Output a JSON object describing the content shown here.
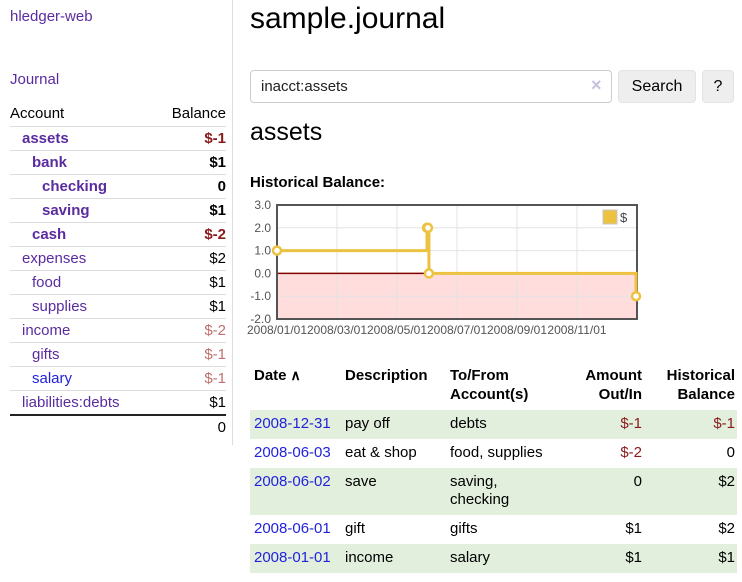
{
  "app": {
    "title": "hledger-web"
  },
  "colors": {
    "link_purple": "#5a2ca0",
    "link_blue": "#2222dd",
    "negative_dark_red": "#8b1a1a",
    "negative_light_red": "#bf7171",
    "row_green": "#e2efdc",
    "series_gold": "#edc240"
  },
  "sidebar": {
    "nav_journal": "Journal",
    "table": {
      "headers": {
        "account": "Account",
        "balance": "Balance"
      },
      "rows": [
        {
          "account": "assets",
          "indent": 1,
          "bold": true,
          "blue": false,
          "balance": "$-1",
          "style": "neg"
        },
        {
          "account": "bank",
          "indent": 2,
          "bold": true,
          "blue": false,
          "balance": "$1",
          "style": ""
        },
        {
          "account": "checking",
          "indent": 3,
          "bold": true,
          "blue": false,
          "balance": "0",
          "style": ""
        },
        {
          "account": "saving",
          "indent": 3,
          "bold": true,
          "blue": false,
          "balance": "$1",
          "style": ""
        },
        {
          "account": "cash",
          "indent": 2,
          "bold": true,
          "blue": false,
          "balance": "$-2",
          "style": "neg"
        },
        {
          "account": "expenses",
          "indent": 1,
          "bold": false,
          "blue": false,
          "balance": "$2",
          "style": ""
        },
        {
          "account": "food",
          "indent": 2,
          "bold": false,
          "blue": false,
          "balance": "$1",
          "style": ""
        },
        {
          "account": "supplies",
          "indent": 2,
          "bold": false,
          "blue": false,
          "balance": "$1",
          "style": ""
        },
        {
          "account": "income",
          "indent": 1,
          "bold": false,
          "blue": false,
          "balance": "$-2",
          "style": "negl"
        },
        {
          "account": "gifts",
          "indent": 2,
          "bold": false,
          "blue": false,
          "balance": "$-1",
          "style": "negl"
        },
        {
          "account": "salary",
          "indent": 2,
          "bold": false,
          "blue": true,
          "balance": "$-1",
          "style": "negl"
        },
        {
          "account": "liabilities:debts",
          "indent": 1,
          "bold": false,
          "blue": false,
          "balance": "$1",
          "style": ""
        }
      ],
      "total": "0"
    }
  },
  "main": {
    "title": "sample.journal",
    "search": {
      "value": "inacct:assets",
      "clear_icon": "×",
      "button": "Search",
      "help_button": "?"
    },
    "section_title": "assets",
    "chart_title": "Historical Balance:"
  },
  "chart_data": {
    "type": "line",
    "title": "Historical Balance:",
    "step": true,
    "series": [
      {
        "name": "$",
        "color": "#edc240",
        "points": [
          [
            "2008-01-01",
            1
          ],
          [
            "2008-06-01",
            2
          ],
          [
            "2008-06-02",
            2
          ],
          [
            "2008-06-03",
            0
          ],
          [
            "2008-12-31",
            -1
          ]
        ]
      }
    ],
    "x_ticks": [
      "2008/01/01",
      "2008/03/01",
      "2008/05/01",
      "2008/07/01",
      "2008/09/01",
      "2008/11/01"
    ],
    "x_tick_months": [
      0,
      2,
      4,
      6,
      8,
      10
    ],
    "xlim_months": [
      0,
      12
    ],
    "y_ticks": [
      3.0,
      2.0,
      1.0,
      0.0,
      -1.0,
      -2.0
    ],
    "ylim": [
      -2,
      3
    ],
    "grid": true,
    "legend_position": "top-right",
    "legend": [
      "$"
    ],
    "negative_fill": "#ffdddd",
    "zero_line_color": "#800000"
  },
  "register": {
    "sort_icon": "∧",
    "headers": [
      "Date",
      "Description",
      "To/From Account(s)",
      "Amount Out/In",
      "Historical Balance"
    ],
    "rows": [
      {
        "date": "2008-12-31",
        "description": "pay off",
        "accounts": "debts",
        "amount": "$-1",
        "amount_neg": true,
        "balance": "$-1",
        "balance_neg": true
      },
      {
        "date": "2008-06-03",
        "description": "eat & shop",
        "accounts": "food, supplies",
        "amount": "$-2",
        "amount_neg": true,
        "balance": "0",
        "balance_neg": false
      },
      {
        "date": "2008-06-02",
        "description": "save",
        "accounts": "saving, checking",
        "amount": "0",
        "amount_neg": false,
        "balance": "$2",
        "balance_neg": false
      },
      {
        "date": "2008-06-01",
        "description": "gift",
        "accounts": "gifts",
        "amount": "$1",
        "amount_neg": false,
        "balance": "$2",
        "balance_neg": false
      },
      {
        "date": "2008-01-01",
        "description": "income",
        "accounts": "salary",
        "amount": "$1",
        "amount_neg": false,
        "balance": "$1",
        "balance_neg": false
      }
    ]
  }
}
